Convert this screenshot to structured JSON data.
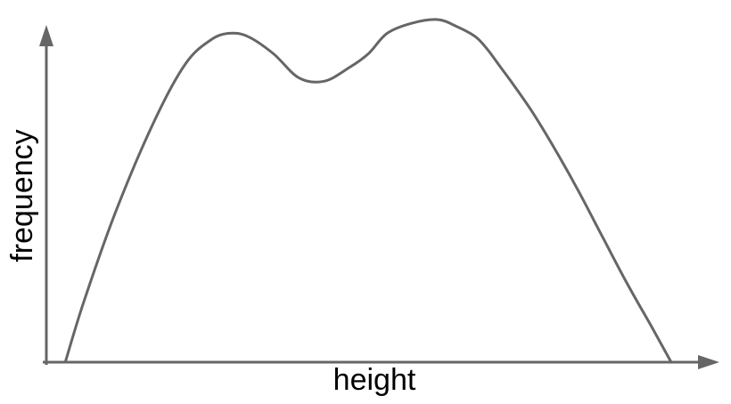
{
  "chart_data": {
    "type": "line",
    "xlabel": "height",
    "ylabel": "frequency",
    "x_ticks": [],
    "y_ticks": [],
    "axes_arrows": true,
    "grid": false,
    "legend": "none",
    "xlim": [
      0,
      100
    ],
    "ylim": [
      0,
      100
    ],
    "series": [
      {
        "x": [
          3,
          6,
          11,
          17,
          22,
          26,
          29,
          32,
          36,
          40,
          44,
          48,
          51,
          54,
          58,
          62,
          65,
          68,
          70,
          72,
          74,
          77,
          80,
          84,
          88,
          92,
          96,
          99
        ],
        "y": [
          0,
          18,
          44,
          70,
          87,
          94,
          96,
          95,
          90,
          83,
          82,
          86,
          90,
          96,
          99,
          100,
          98,
          95,
          91,
          86,
          81,
          73,
          64,
          51,
          37,
          23,
          10,
          0
        ]
      }
    ],
    "colors": {
      "line": "#666666",
      "axes": "#666666"
    }
  }
}
